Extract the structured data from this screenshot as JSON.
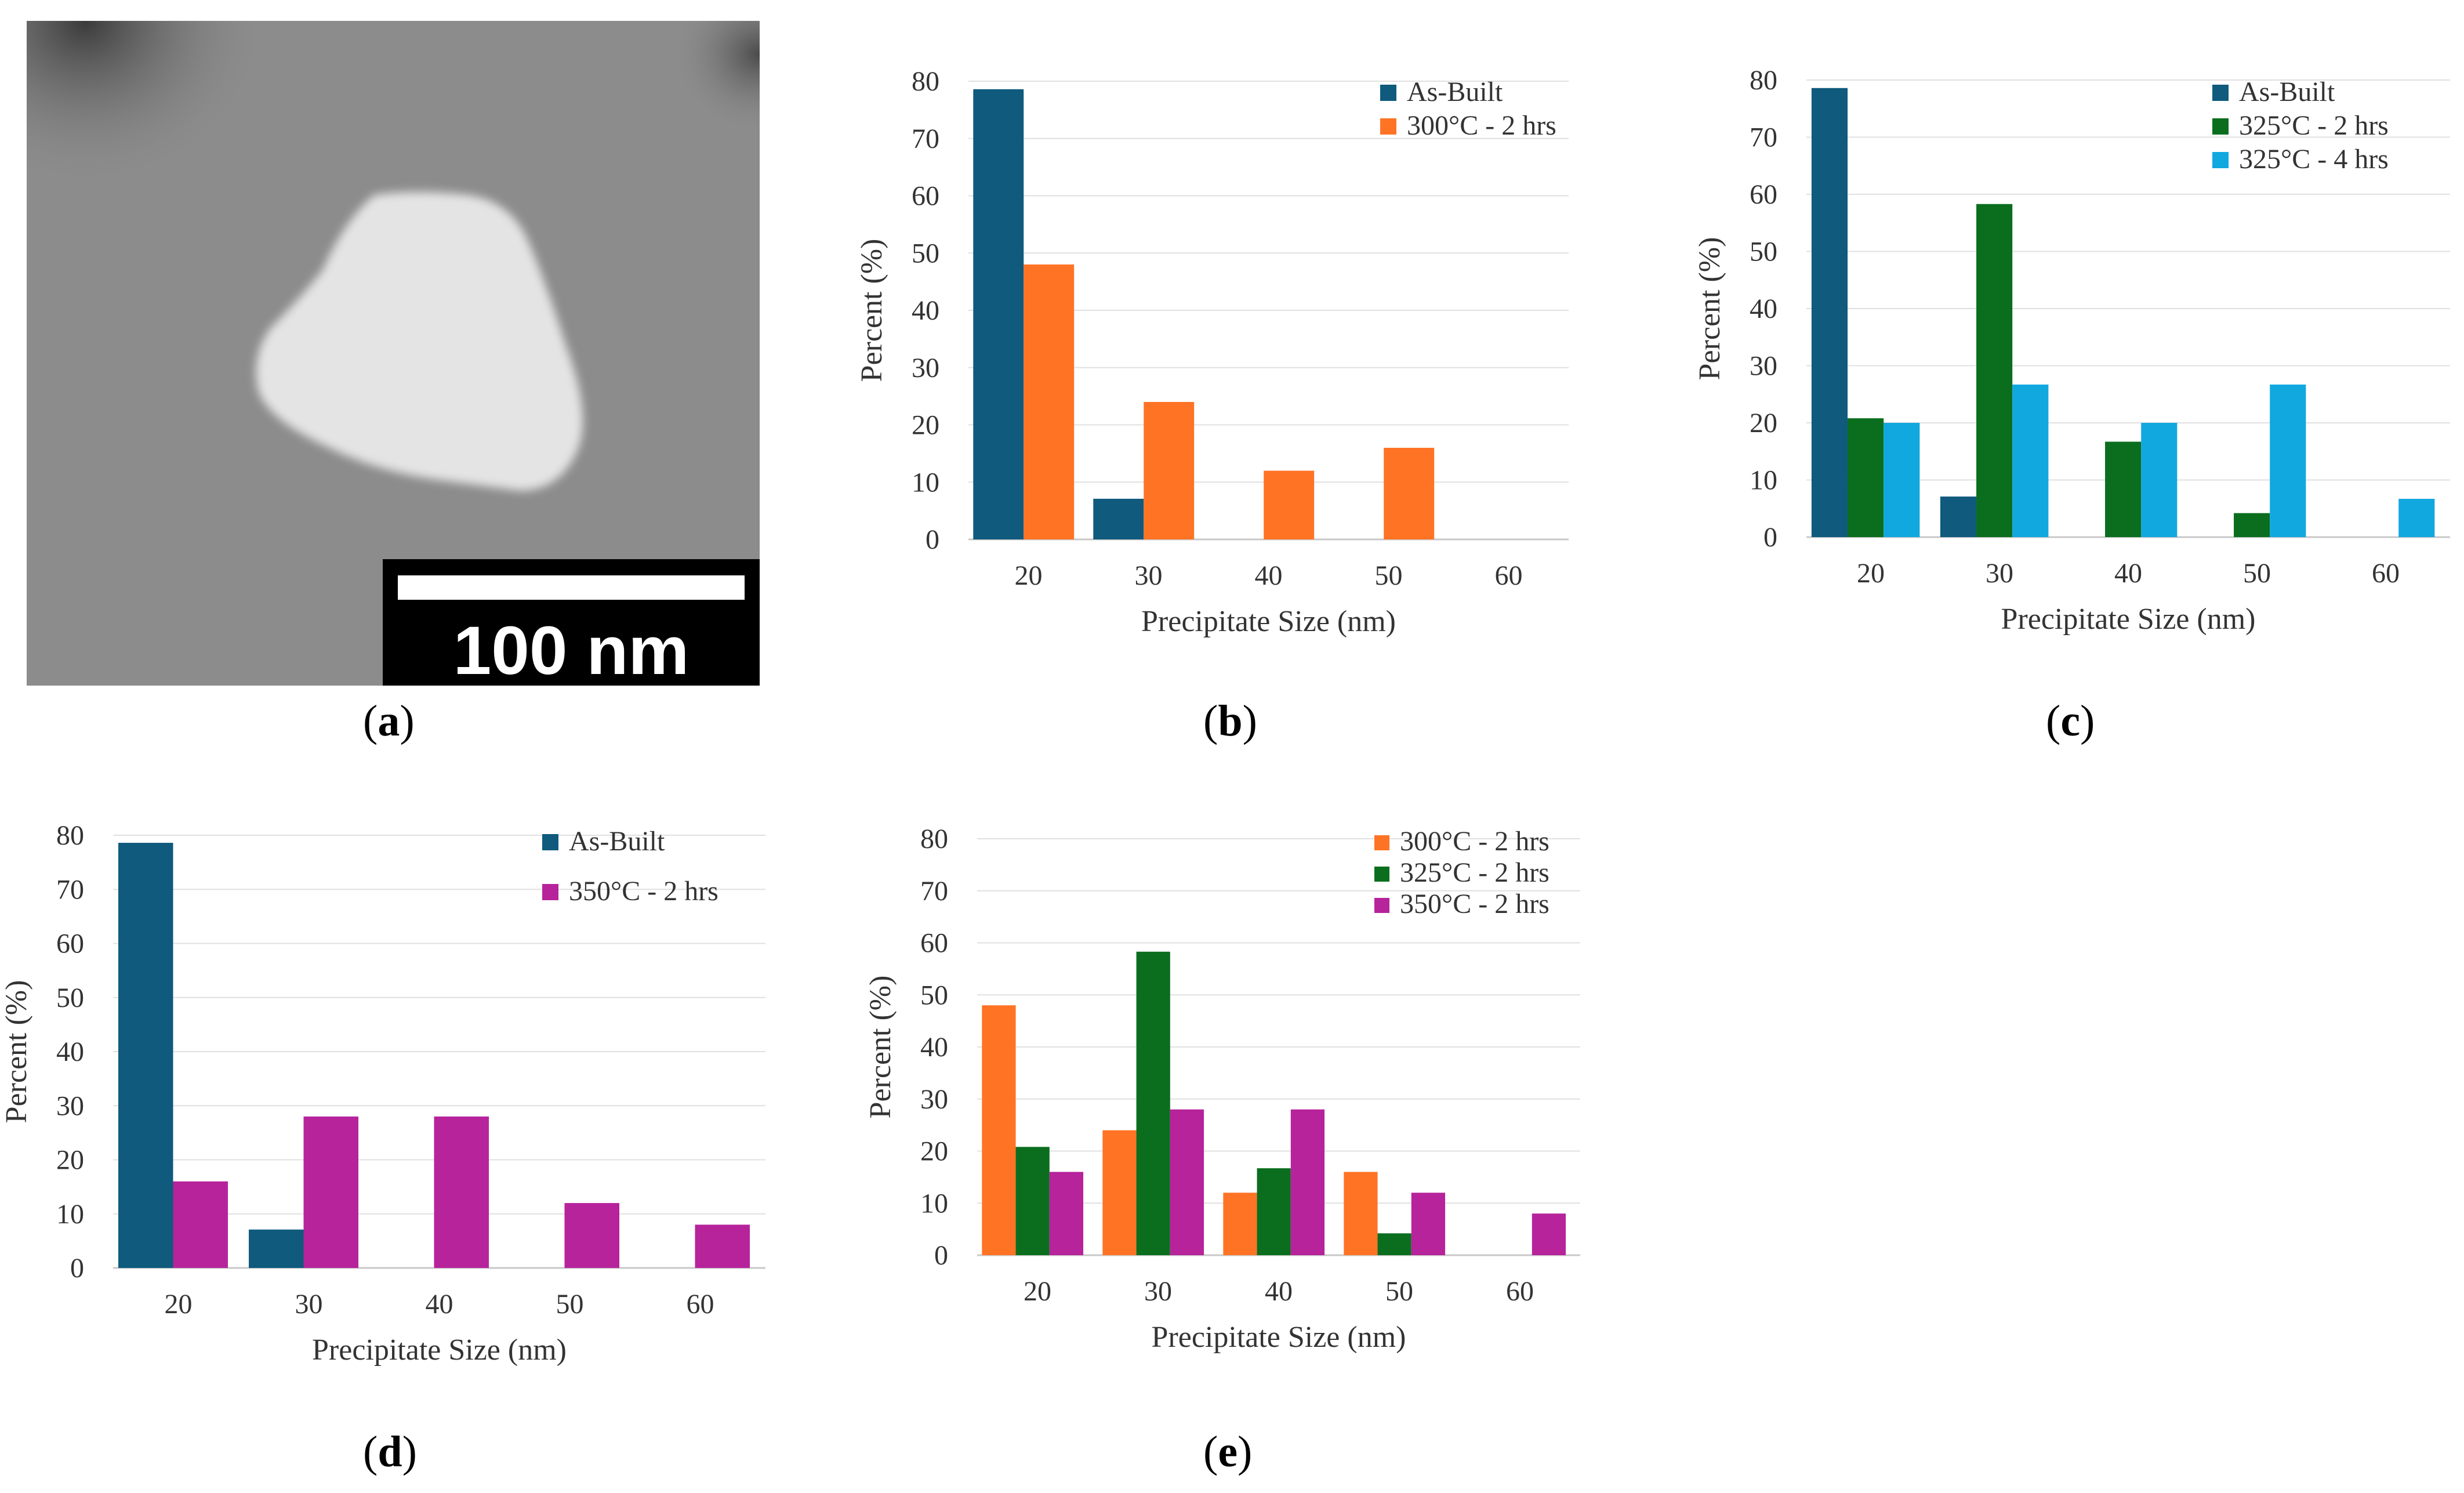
{
  "labels": {
    "a": "a",
    "b": "b",
    "c": "c",
    "d": "d",
    "e": "e"
  },
  "micrograph": {
    "scale_bar_text": "100 nm"
  },
  "colors": {
    "as_built": "#0f5a7d",
    "t300": "#ff7325",
    "t325_2": "#0a6e1e",
    "t325_4": "#11a8e0",
    "t350": "#b6239b",
    "grid": "#e0e0e0",
    "axis": "#c8c8c8"
  },
  "chart_data": [
    {
      "id": "b",
      "type": "bar",
      "xlabel": "Precipitate Size (nm)",
      "ylabel": "Percent (%)",
      "ylim": [
        0,
        80
      ],
      "yticks": [
        0,
        10,
        20,
        30,
        40,
        50,
        60,
        70,
        80
      ],
      "categories": [
        "20",
        "30",
        "40",
        "50",
        "60"
      ],
      "legend_position": "top-right",
      "series": [
        {
          "name": "As-Built",
          "color_key": "as_built",
          "values": [
            78.6,
            7.1,
            0,
            0,
            0
          ]
        },
        {
          "name": "300°C - 2 hrs",
          "color_key": "t300",
          "values": [
            48,
            24,
            12,
            16,
            0
          ]
        }
      ]
    },
    {
      "id": "c",
      "type": "bar",
      "xlabel": "Precipitate Size (nm)",
      "ylabel": "Percent (%)",
      "ylim": [
        0,
        80
      ],
      "yticks": [
        0,
        10,
        20,
        30,
        40,
        50,
        60,
        70,
        80
      ],
      "categories": [
        "20",
        "30",
        "40",
        "50",
        "60"
      ],
      "legend_position": "top-right",
      "series": [
        {
          "name": "As-Built",
          "color_key": "as_built",
          "values": [
            78.6,
            7.1,
            0,
            0,
            0
          ]
        },
        {
          "name": "325°C - 2 hrs",
          "color_key": "t325_2",
          "values": [
            20.8,
            58.3,
            16.7,
            4.2,
            0
          ]
        },
        {
          "name": "325°C - 4 hrs",
          "color_key": "t325_4",
          "values": [
            20,
            26.7,
            20,
            26.7,
            6.7
          ]
        }
      ]
    },
    {
      "id": "d",
      "type": "bar",
      "xlabel": "Precipitate Size (nm)",
      "ylabel": "Percent (%)",
      "ylim": [
        0,
        80
      ],
      "yticks": [
        0,
        10,
        20,
        30,
        40,
        50,
        60,
        70,
        80
      ],
      "categories": [
        "20",
        "30",
        "40",
        "50",
        "60"
      ],
      "legend_position": "top-right",
      "series": [
        {
          "name": "As-Built",
          "color_key": "as_built",
          "values": [
            78.6,
            7.1,
            0,
            0,
            0
          ]
        },
        {
          "name": "350°C - 2 hrs",
          "color_key": "t350",
          "values": [
            16,
            28,
            28,
            12,
            8
          ]
        }
      ]
    },
    {
      "id": "e",
      "type": "bar",
      "xlabel": "Precipitate Size (nm)",
      "ylabel": "Percent (%)",
      "ylim": [
        0,
        80
      ],
      "yticks": [
        0,
        10,
        20,
        30,
        40,
        50,
        60,
        70,
        80
      ],
      "categories": [
        "20",
        "30",
        "40",
        "50",
        "60"
      ],
      "legend_position": "top-right",
      "series": [
        {
          "name": "300°C - 2 hrs",
          "color_key": "t300",
          "values": [
            48,
            24,
            12,
            16,
            0
          ]
        },
        {
          "name": "325°C - 2 hrs",
          "color_key": "t325_2",
          "values": [
            20.8,
            58.3,
            16.7,
            4.2,
            0
          ]
        },
        {
          "name": "350°C - 2 hrs",
          "color_key": "t350",
          "values": [
            16,
            28,
            28,
            12,
            8
          ]
        }
      ]
    }
  ]
}
